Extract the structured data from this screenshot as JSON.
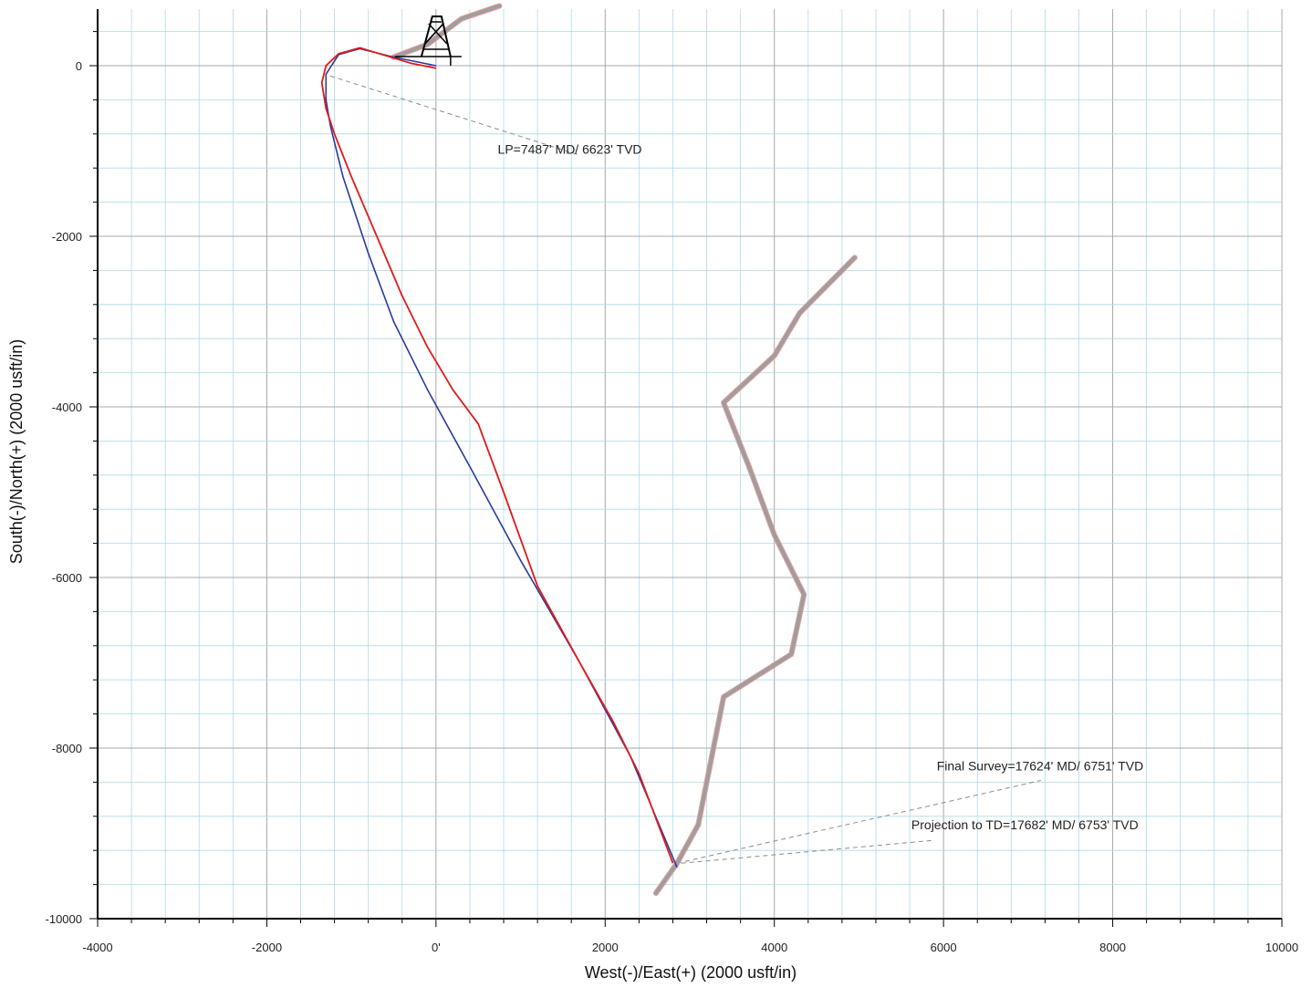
{
  "chart_data": {
    "type": "line",
    "title": "",
    "xlabel": "West(-)/East(+) (2000 usft/in)",
    "ylabel": "South(-)/North(+) (2000 usft/in)",
    "xlim": [
      -4000,
      10000
    ],
    "ylim": [
      -10000,
      600
    ],
    "x_ticks": [
      "-4000",
      "-2000",
      "0'",
      "2000",
      "4000",
      "6000",
      "8000",
      "10000"
    ],
    "y_ticks": [
      "0",
      "-2000",
      "-4000",
      "-6000",
      "-8000",
      "-10000"
    ],
    "grid": true,
    "colors": {
      "planned": "#2a3a9c",
      "actual": "#e01a1a",
      "lease": "#9e9e9e",
      "lease_edge": "#e89a9a",
      "grid_major": "#a8a8a8",
      "grid_minor": "#aedbe8",
      "leader": "#8c8c8c"
    },
    "series": [
      {
        "key": "lease",
        "x": [
          4950,
          4300,
          4000,
          3400,
          3700,
          4000,
          4350,
          4200,
          3400,
          3100,
          2850,
          2600
        ],
        "y": [
          -2250,
          -2900,
          -3400,
          -3950,
          -4700,
          -5500,
          -6200,
          -6900,
          -7400,
          -8900,
          -9350,
          -9700
        ]
      },
      {
        "key": "lease_top",
        "x": [
          -500,
          -100,
          300,
          750
        ],
        "y": [
          100,
          250,
          550,
          700
        ]
      },
      {
        "key": "planned",
        "x": [
          0,
          -500,
          -900,
          -1150,
          -1300,
          -1300,
          -1250,
          -1100,
          -800,
          -500,
          -100,
          400,
          1000,
          1700,
          2300,
          2850
        ],
        "y": [
          0,
          100,
          200,
          130,
          -100,
          -400,
          -700,
          -1300,
          -2200,
          -3000,
          -3800,
          -4700,
          -5800,
          -7000,
          -8100,
          -9400
        ]
      },
      {
        "key": "actual",
        "x": [
          0,
          -300,
          -600,
          -900,
          -1150,
          -1300,
          -1350,
          -1300,
          -1200,
          -1000,
          -700,
          -400,
          -100,
          200,
          500,
          800,
          1200,
          1700,
          2100,
          2400,
          2800
        ],
        "y": [
          -30,
          30,
          120,
          210,
          140,
          0,
          -200,
          -500,
          -800,
          -1300,
          -2000,
          -2700,
          -3300,
          -3800,
          -4200,
          -5000,
          -6100,
          -7000,
          -7700,
          -8300,
          -9350
        ]
      }
    ],
    "annotations": [
      {
        "text": "LP=7487' MD/ 6623' TVD",
        "x": 730,
        "y": -1030,
        "anchor_x": -1250,
        "anchor_y": -120,
        "leader_end_x": 1700,
        "leader_end_y": -1050
      },
      {
        "text": "Final Survey=17624' MD/ 6751' TVD",
        "x": 5920,
        "y": -8260,
        "anchor_x": 2850,
        "anchor_y": -9350,
        "leader_end_x": 7150,
        "leader_end_y": -8380
      },
      {
        "text": "Projection to TD=17682' MD/ 6753' TVD",
        "x": 5620,
        "y": -8950,
        "anchor_x": 2900,
        "anchor_y": -9350,
        "leader_end_x": 5900,
        "leader_end_y": -9080
      }
    ],
    "rig_symbol": {
      "x": 0,
      "y": 0
    }
  }
}
